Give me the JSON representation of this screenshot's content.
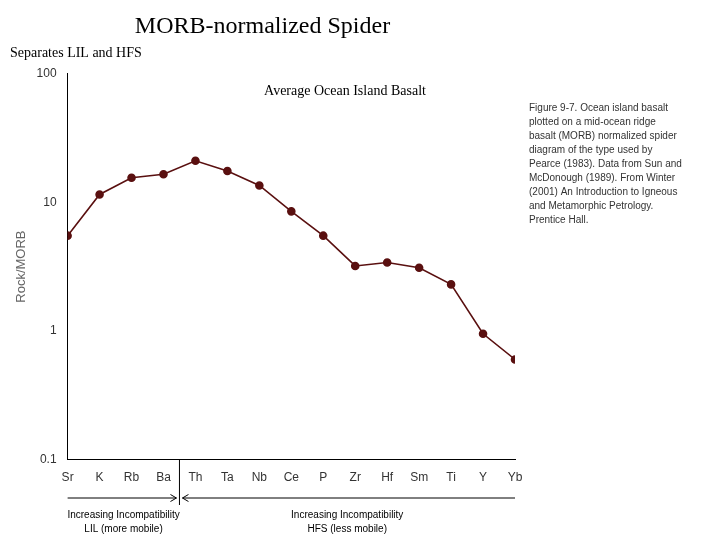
{
  "chart_data": {
    "type": "line",
    "title": "MORB-normalized Spider",
    "subtitle": "Separates LIL and HFS",
    "categories": [
      "Sr",
      "K",
      "Rb",
      "Ba",
      "Th",
      "Ta",
      "Nb",
      "Ce",
      "P",
      "Zr",
      "Hf",
      "Sm",
      "Ti",
      "Y",
      "Yb"
    ],
    "values": [
      5.5,
      11.5,
      15.5,
      16.5,
      21.0,
      17.5,
      13.5,
      8.5,
      5.5,
      3.2,
      3.4,
      3.1,
      2.3,
      0.95,
      0.6
    ],
    "color": "#5a1010",
    "marker": "circle",
    "ylabel": "Rock/MORB",
    "log": "y",
    "ylim": [
      0.1,
      100
    ],
    "yticks": [
      0.1,
      1,
      10,
      100
    ],
    "grid": false,
    "annotation": "Average Ocean Island Basalt",
    "caption": "Figure 9-7. Ocean island basalt\nplotted on a mid-ocean ridge\nbasalt (MORB) normalized spider\ndiagram of the type used by\nPearce (1983). Data from Sun and\nMcDonough (1989). From Winter\n(2001) An Introduction to Igneous\nand Metamorphic Petrology.\nPrentice Hall.",
    "groups": [
      {
        "first": "Sr",
        "last": "Ba",
        "labels": [
          "Increasing Incompatibility",
          "LIL (more mobile)"
        ]
      },
      {
        "first": "Th",
        "last": "Yb",
        "labels": [
          "Increasing Incompatibility",
          "HFS (less mobile)"
        ]
      }
    ]
  }
}
